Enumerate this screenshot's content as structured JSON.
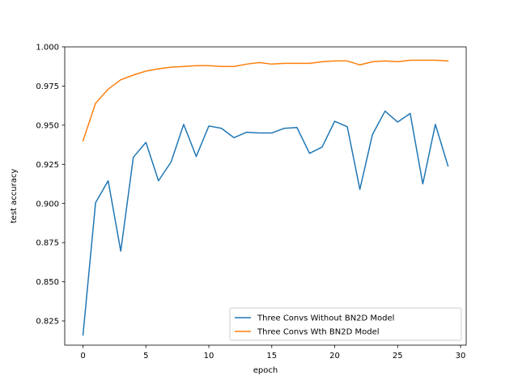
{
  "chart_data": {
    "type": "line",
    "title": "",
    "xlabel": "epoch",
    "ylabel": "test accuracy",
    "xlim": [
      -1.45,
      30.45
    ],
    "ylim": [
      0.8095,
      1.0
    ],
    "xticks": [
      0,
      5,
      10,
      15,
      20,
      25,
      30
    ],
    "yticks": [
      0.825,
      0.85,
      0.875,
      0.9,
      0.925,
      0.95,
      0.975,
      1.0
    ],
    "ytick_labels": [
      "0.825",
      "0.850",
      "0.875",
      "0.900",
      "0.925",
      "0.950",
      "0.975",
      "1.000"
    ],
    "grid": false,
    "legend_position": "lower right",
    "x": [
      0,
      1,
      2,
      3,
      4,
      5,
      6,
      7,
      8,
      9,
      10,
      11,
      12,
      13,
      14,
      15,
      16,
      17,
      18,
      19,
      20,
      21,
      22,
      23,
      24,
      25,
      26,
      27,
      28,
      29
    ],
    "series": [
      {
        "name": "Three Convs Without BN2D Model",
        "color": "#1f77b4",
        "values": [
          0.816,
          0.9005,
          0.9145,
          0.8695,
          0.9295,
          0.939,
          0.9145,
          0.9265,
          0.9505,
          0.93,
          0.9495,
          0.948,
          0.942,
          0.9455,
          0.945,
          0.945,
          0.948,
          0.9485,
          0.932,
          0.936,
          0.9525,
          0.949,
          0.909,
          0.944,
          0.959,
          0.952,
          0.9575,
          0.9125,
          0.9505,
          0.924
        ]
      },
      {
        "name": "Three Convs Wth BN2D Model",
        "color": "#ff7f0e",
        "values": [
          0.94,
          0.964,
          0.973,
          0.979,
          0.982,
          0.9845,
          0.986,
          0.987,
          0.9875,
          0.988,
          0.988,
          0.9875,
          0.9875,
          0.989,
          0.99,
          0.989,
          0.9895,
          0.9895,
          0.9895,
          0.9905,
          0.991,
          0.991,
          0.9885,
          0.9905,
          0.991,
          0.9905,
          0.9915,
          0.9915,
          0.9915,
          0.991
        ]
      }
    ]
  }
}
